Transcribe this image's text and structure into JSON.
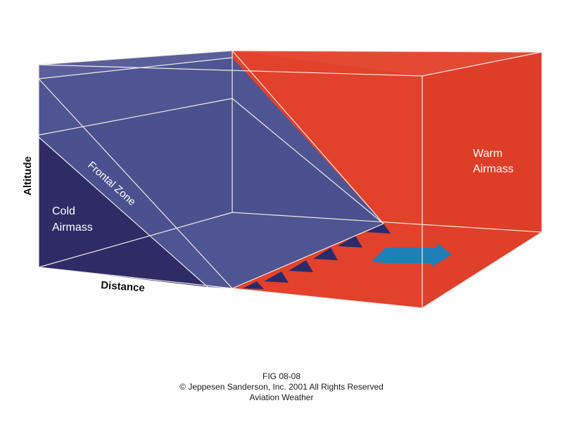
{
  "diagram": {
    "labels": {
      "altitude": "Altitude",
      "distance": "Distance",
      "cold_line1": "Cold",
      "cold_line2": "Airmass",
      "warm_line1": "Warm",
      "warm_line2": "Airmass",
      "frontal_zone": "Frontal Zone"
    },
    "colors": {
      "warm": "#e2412b",
      "warm_dark": "#c9321f",
      "frontal_zone": "#4e5592",
      "cold": "#2e2b66",
      "front_barbs": "#2b2a6a",
      "arrow": "#1f7fb8",
      "edges": "#f3e9e6"
    },
    "icons": {
      "movement_arrow": "arrow-right-icon",
      "front_symbol": "cold-front-barbs-icon"
    }
  },
  "caption": {
    "figure": "FIG 08-08",
    "copyright": "© Jeppesen Sanderson, Inc. 2001 All Rights Reserved",
    "subject": "Aviation Weather"
  }
}
